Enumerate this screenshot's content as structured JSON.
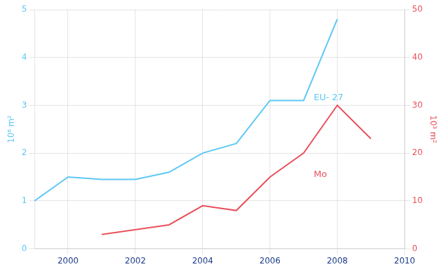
{
  "chart_data": {
    "type": "line",
    "series": [
      {
        "name": "EU- 27",
        "color": "#5bc8f5",
        "x": [
          1999,
          2000,
          2001,
          2002,
          2003,
          2004,
          2005,
          2006,
          2007,
          2008
        ],
        "values": [
          1.0,
          1.5,
          1.45,
          1.45,
          1.6,
          2.0,
          2.2,
          3.1,
          3.1,
          4.8
        ]
      },
      {
        "name": "Mo",
        "color": "#e8505a",
        "axis": "y2",
        "x": [
          2001,
          2002,
          2003,
          2004,
          2005,
          2006,
          2007,
          2008,
          2009
        ],
        "values": [
          3,
          4,
          5,
          9,
          8,
          15,
          20,
          30,
          23
        ]
      }
    ],
    "xlim": [
      1999,
      2010
    ],
    "xticks": [
      2000,
      2002,
      2004,
      2006,
      2008,
      2010
    ],
    "ylim": [
      0,
      5
    ],
    "yticks": [
      0,
      1,
      2,
      3,
      4,
      5
    ],
    "y2lim": [
      0,
      50
    ],
    "y2ticks": [
      0,
      10,
      20,
      30,
      40,
      50
    ],
    "ylabel": "10⁶ m²",
    "y2label": "10³ m²",
    "annotations": [
      {
        "text": "EU- 27",
        "x": 2007.3,
        "y": 3.1,
        "color": "#5bc8f5"
      },
      {
        "text": "Mo",
        "x": 2007.3,
        "y": 15,
        "axis": "y2",
        "color": "#e8505a"
      }
    ],
    "grid": true
  }
}
